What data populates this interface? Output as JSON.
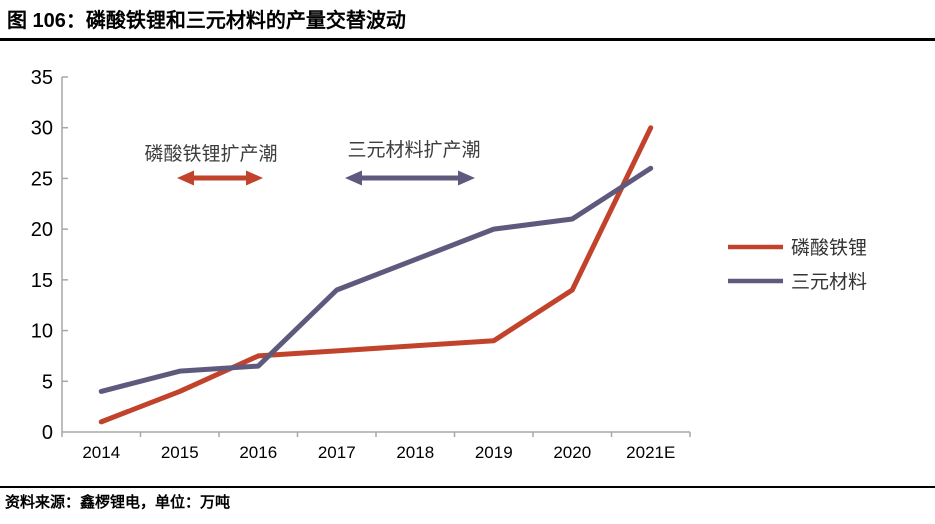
{
  "figure": {
    "title": "图 106：磷酸铁锂和三元材料的产量交替波动",
    "source_note": "资料来源：鑫椤锂电，单位：万吨"
  },
  "chart_data": {
    "type": "line",
    "title": "磷酸铁锂和三元材料的产量交替波动",
    "unit": "万吨",
    "categories": [
      "2014",
      "2015",
      "2016",
      "2017",
      "2018",
      "2019",
      "2020",
      "2021E"
    ],
    "series": [
      {
        "name": "磷酸铁锂",
        "color": "#c2432c",
        "values": [
          1,
          4,
          7.5,
          8,
          8.5,
          9,
          14,
          30
        ]
      },
      {
        "name": "三元材料",
        "color": "#5e5a7d",
        "values": [
          4,
          6,
          6.5,
          14,
          17,
          20,
          21,
          26
        ]
      }
    ],
    "ylim": [
      0,
      35
    ],
    "yticks": [
      0,
      5,
      10,
      15,
      20,
      25,
      30,
      35
    ],
    "xlabel": "",
    "ylabel": "",
    "grid": false,
    "legend_position": "right",
    "annotations": [
      {
        "text": "磷酸铁锂扩产潮",
        "series": "磷酸铁锂",
        "color": "#c2432c"
      },
      {
        "text": "三元材料扩产潮",
        "series": "三元材料",
        "color": "#5e5a7d"
      }
    ],
    "axis_color": "#a7a7a7",
    "tick_label_color": "#000000",
    "annotation_text_color": "#3d3d3d",
    "legend_text_color": "#333333"
  }
}
